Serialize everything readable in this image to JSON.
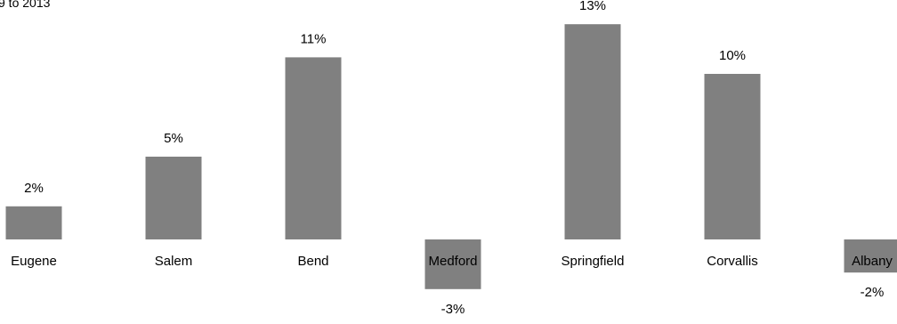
{
  "chart_data": {
    "type": "bar",
    "title": "",
    "subtitle": "9 to 2013",
    "xlabel": "",
    "ylabel": "",
    "categories": [
      "Eugene",
      "Salem",
      "Bend",
      "Medford",
      "Springfield",
      "Corvallis",
      "Albany"
    ],
    "values": [
      2,
      5,
      11,
      -3,
      13,
      10,
      -2
    ],
    "value_labels": [
      "2%",
      "5%",
      "11%",
      "-3%",
      "13%",
      "10%",
      "-2%"
    ],
    "ylim": [
      -3,
      13
    ],
    "grid": false,
    "legend": "none",
    "bar_color": "#808080"
  }
}
